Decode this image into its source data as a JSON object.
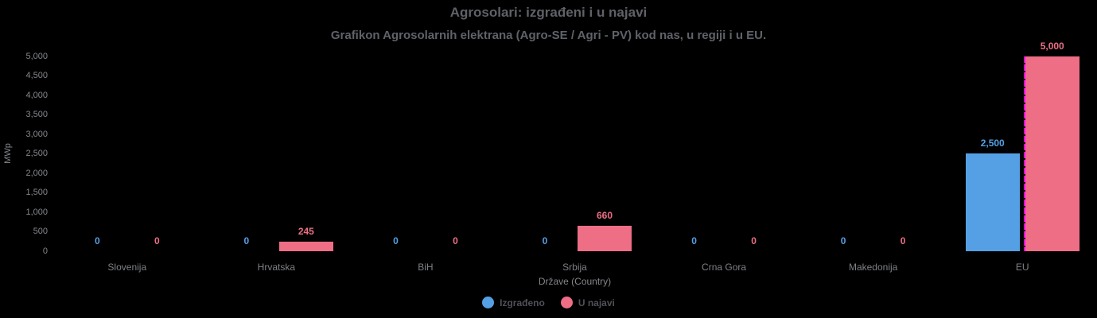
{
  "chart_data": {
    "type": "bar",
    "title": "Agrosolari: izgrađeni i u najavi",
    "subtitle": "Grafikon Agrosolarnih elektrana (Agro-SE / Agri - PV) kod nas, u regiji i u EU.",
    "categories": [
      "Slovenija",
      "Hrvatska",
      "BiH",
      "Srbija",
      "Crna Gora",
      "Makedonija",
      "EU"
    ],
    "series": [
      {
        "name": "Izgrađeno",
        "color": "#55a0e4",
        "values": [
          0,
          0,
          0,
          0,
          0,
          0,
          2500
        ]
      },
      {
        "name": "U najavi",
        "color": "#ed6e85",
        "values": [
          0,
          245,
          0,
          660,
          0,
          0,
          5000
        ]
      }
    ],
    "xlabel": "Države (Country)",
    "ylabel": "MWp",
    "ylim": [
      0,
      5000
    ],
    "ytick_step": 500,
    "grid": false,
    "legend_position": "bottom",
    "background_color": "#000000",
    "annotation": {
      "type": "vline",
      "category": "EU",
      "color": "#ff00ff",
      "style": "dashed"
    }
  }
}
